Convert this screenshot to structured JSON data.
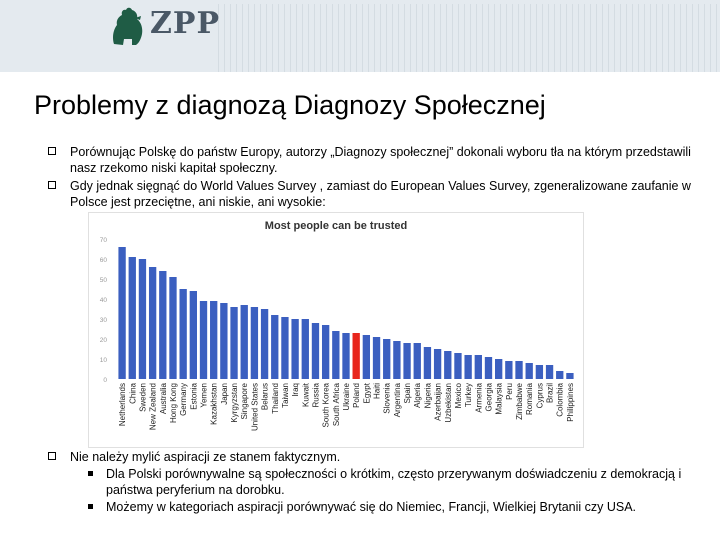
{
  "logo": {
    "text": "ZPP"
  },
  "slide": {
    "title": "Problemy z diagnozą Diagnozy Społecznej",
    "bullets": [
      "Porównując Polskę do państw Europy, autorzy „Diagnozy społecznej” dokonali wyboru tła na którym przedstawili nasz rzekomo niski kapitał społeczny.",
      "Gdy jednak sięgnąć do World Values Survey , zamiast do European Values Survey, zgeneralizowane zaufanie w Polsce jest przeciętne, ani niskie, ani wysokie:",
      "Nie należy mylić aspiracji ze stanem faktycznym."
    ],
    "subbullets": [
      "Dla Polski porównywalne są społeczności o krótkim, często przerywanym doświadczeniu z demokracją i państwa peryferium na dorobku.",
      "Możemy w kategoriach aspiracji porównywać się do Niemiec, Francji, Wielkiej Brytanii czy USA."
    ]
  },
  "colors": {
    "bar": "#3b5fc0",
    "highlight": "#e8261c"
  },
  "chart_data": {
    "type": "bar",
    "title": "Most people can be trusted",
    "ylim": [
      0,
      70
    ],
    "yticks": [
      0,
      10,
      20,
      30,
      40,
      50,
      60,
      70
    ],
    "highlight": "Poland",
    "categories": [
      "Netherlands",
      "China",
      "Sweden",
      "New Zealand",
      "Australia",
      "Hong Kong",
      "Germany",
      "Estonia",
      "Yemen",
      "Kazakhstan",
      "Japan",
      "Kyrgyzstan",
      "Singapore",
      "United States",
      "Belarus",
      "Thailand",
      "Taiwan",
      "Iraq",
      "Kuwait",
      "Russia",
      "South Korea",
      "South Africa",
      "Ukraine",
      "Poland",
      "Egypt",
      "Haiti",
      "Slovenia",
      "Argentina",
      "Spain",
      "Algeria",
      "Nigeria",
      "Azerbaijan",
      "Uzbekistan",
      "Mexico",
      "Turkey",
      "Armenia",
      "Georgia",
      "Malaysia",
      "Peru",
      "Zimbabwe",
      "Romania",
      "Cyprus",
      "Brazil",
      "Colombia",
      "Philippines"
    ],
    "values": [
      66,
      61,
      60,
      56,
      54,
      51,
      45,
      44,
      39,
      39,
      38,
      36,
      37,
      36,
      35,
      32,
      31,
      30,
      30,
      28,
      27,
      24,
      23,
      23,
      22,
      21,
      20,
      19,
      18,
      18,
      16,
      15,
      14,
      13,
      12,
      12,
      11,
      10,
      9,
      9,
      8,
      7,
      7,
      4,
      3
    ]
  }
}
